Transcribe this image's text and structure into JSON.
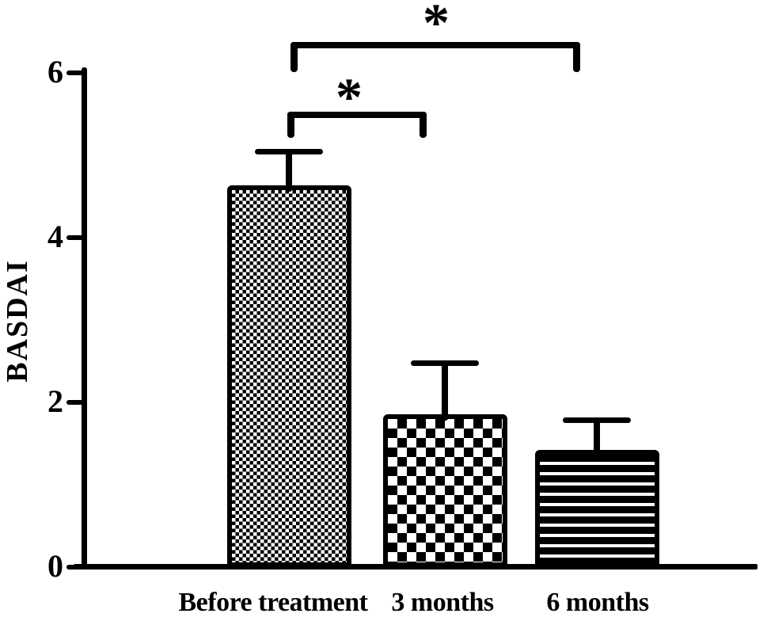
{
  "figure": {
    "background": "#ffffff",
    "ink": "#000000"
  },
  "chart_data": {
    "type": "bar",
    "title": "",
    "xlabel": "",
    "ylabel": "BASDAI",
    "categories": [
      "Before treatment",
      "3 months",
      "6 months"
    ],
    "values": [
      4.63,
      1.86,
      1.42
    ],
    "error_plus": [
      0.45,
      0.65,
      0.4
    ],
    "ylim": [
      0,
      6
    ],
    "yticks": [
      0,
      2,
      4,
      6
    ],
    "grid": false,
    "legend_position": "none",
    "bar_fill_color": "#000000",
    "bar_patterns": [
      "fine-checker",
      "coarse-checker",
      "horizontal-stripes"
    ],
    "significance": [
      {
        "pair": [
          "Before treatment",
          "6 months"
        ],
        "label": "*"
      },
      {
        "pair": [
          "Before treatment",
          "3 months"
        ],
        "label": "*"
      }
    ]
  }
}
